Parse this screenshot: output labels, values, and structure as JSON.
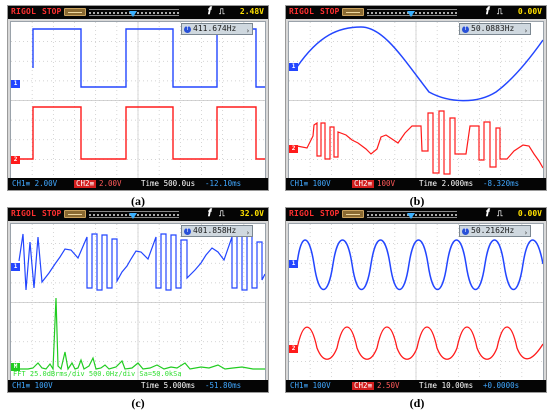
{
  "panels": [
    {
      "id": "a",
      "brand": "RIGOL",
      "run_state": "STOP",
      "trigger_level": "2.48V",
      "frequency": "411.674Hz",
      "ch1": "CH1≡ 2.00V",
      "ch2": "CH2≡",
      "ch2_value": "2.00V",
      "time": "Time 500.0us",
      "offset": "-12.10ms",
      "caption": "(a)",
      "colors": {
        "ch1": "#2346ff",
        "ch2": "#ff1b1b"
      },
      "icon": "rising-edge-icon"
    },
    {
      "id": "b",
      "brand": "RIGOL",
      "run_state": "STOP",
      "trigger_level": "0.00V",
      "frequency": "50.0883Hz",
      "ch1": "CH1≡ 100V",
      "ch2": "CH2≡",
      "ch2_value": "100V",
      "time": "Time 2.000ms",
      "offset": "-8.320ms",
      "caption": "(b)",
      "colors": {
        "ch1": "#2346ff",
        "ch2": "#ff1b1b"
      },
      "icon": "rising-edge-icon"
    },
    {
      "id": "c",
      "brand": "RIGOL",
      "run_state": "STOP",
      "trigger_level": "32.0V",
      "frequency": "401.858Hz",
      "ch1": "CH1≡ 100V",
      "fft": "FFT 25.0dBrms/div 500.0Hz/div Sa=50.0kSa",
      "time": "Time 5.000ms",
      "offset": "-51.80ms",
      "caption": "(c)",
      "colors": {
        "ch1": "#2346ff",
        "fft": "#21cc21"
      },
      "icon": "rising-edge-icon"
    },
    {
      "id": "d",
      "brand": "RIGOL",
      "run_state": "STOP",
      "trigger_level": "0.00V",
      "frequency": "50.2162Hz",
      "ch1": "CH1≡ 100V",
      "ch2": "CH2≡",
      "ch2_value": "2.50V",
      "time": "Time 10.00ms",
      "offset": "+0.0000s",
      "caption": "(d)",
      "colors": {
        "ch1": "#2346ff",
        "ch2": "#ff1b1b"
      },
      "icon": "rising-edge-icon"
    }
  ]
}
